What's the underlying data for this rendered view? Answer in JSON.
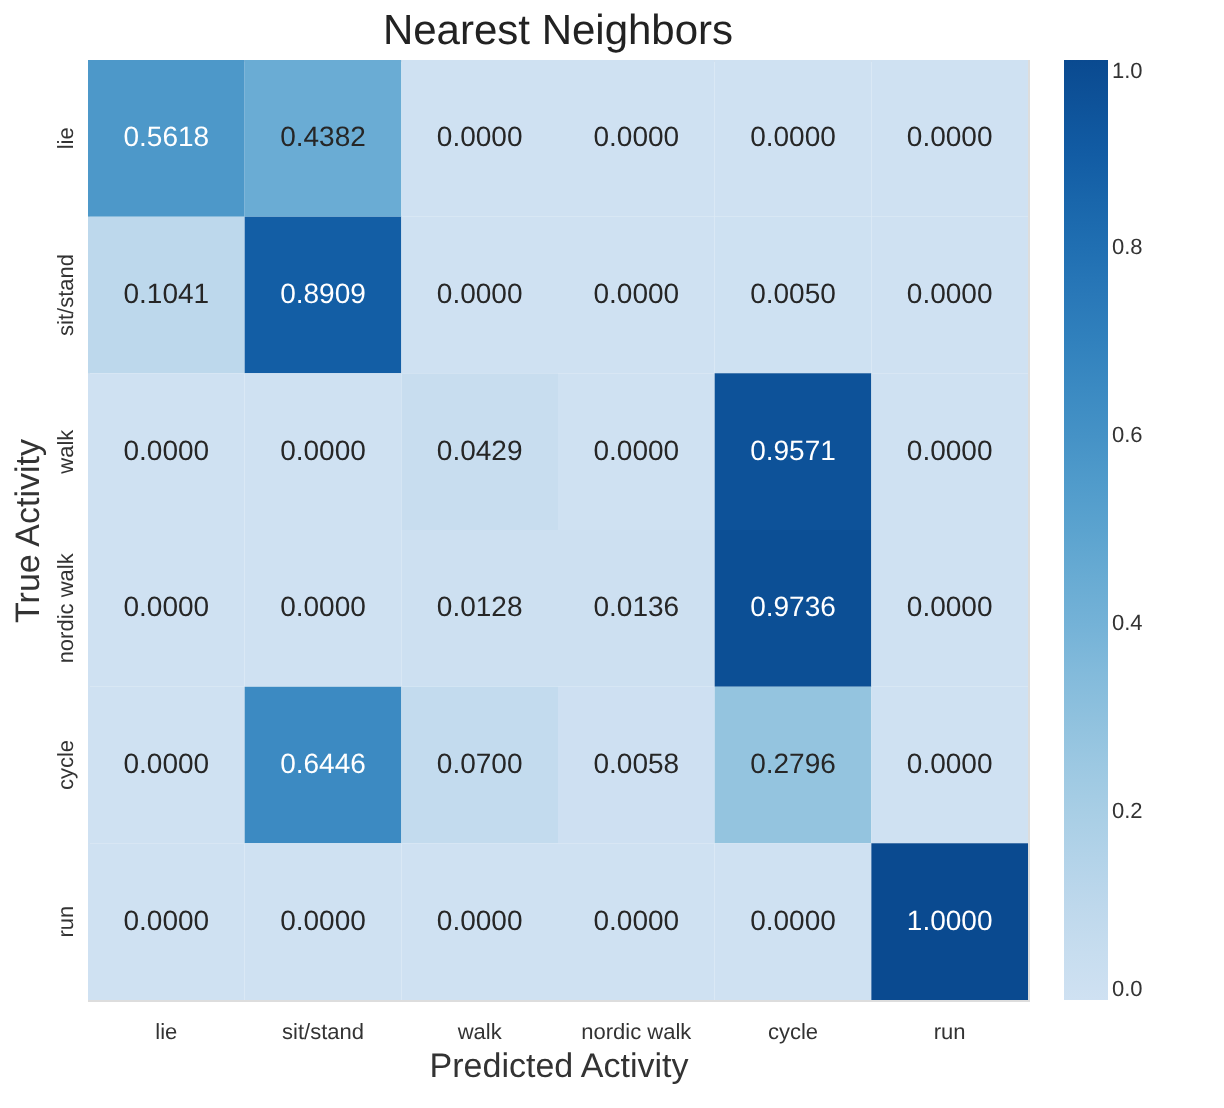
{
  "chart_data": {
    "type": "heatmap",
    "title": "Nearest Neighbors",
    "xlabel": "Predicted Activity",
    "ylabel": "True Activity",
    "categories": [
      "lie",
      "sit/stand",
      "walk",
      "nordic walk",
      "cycle",
      "run"
    ],
    "y_categories": [
      "lie",
      "sit/stand",
      "walk",
      "nordic walk",
      "cycle",
      "run"
    ],
    "cells": [
      [
        0.5618,
        0.4382,
        0.0,
        0.0,
        0.0,
        0.0
      ],
      [
        0.1041,
        0.8909,
        0.0,
        0.0,
        0.005,
        0.0
      ],
      [
        0.0,
        0.0,
        0.0429,
        0.0,
        0.9571,
        0.0
      ],
      [
        0.0,
        0.0,
        0.0128,
        0.0136,
        0.9736,
        0.0
      ],
      [
        0.0,
        0.6446,
        0.07,
        0.0058,
        0.2796,
        0.0
      ],
      [
        0.0,
        0.0,
        0.0,
        0.0,
        0.0,
        1.0
      ]
    ],
    "cell_labels": [
      [
        "0.5618",
        "0.4382",
        "0.0000",
        "0.0000",
        "0.0000",
        "0.0000"
      ],
      [
        "0.1041",
        "0.8909",
        "0.0000",
        "0.0000",
        "0.0050",
        "0.0000"
      ],
      [
        "0.0000",
        "0.0000",
        "0.0429",
        "0.0000",
        "0.9571",
        "0.0000"
      ],
      [
        "0.0000",
        "0.0000",
        "0.0128",
        "0.0136",
        "0.9736",
        "0.0000"
      ],
      [
        "0.0000",
        "0.6446",
        "0.0700",
        "0.0058",
        "0.2796",
        "0.0000"
      ],
      [
        "0.0000",
        "0.0000",
        "0.0000",
        "0.0000",
        "0.0000",
        "1.0000"
      ]
    ],
    "clim": [
      0,
      1
    ],
    "cticks": [
      {
        "value": 0,
        "label": "0.0"
      },
      {
        "value": 0.2,
        "label": "0.2"
      },
      {
        "value": 0.4,
        "label": "0.4"
      },
      {
        "value": 0.6,
        "label": "0.6"
      },
      {
        "value": 0.8,
        "label": "0.8"
      },
      {
        "value": 1,
        "label": "1.0"
      }
    ]
  }
}
